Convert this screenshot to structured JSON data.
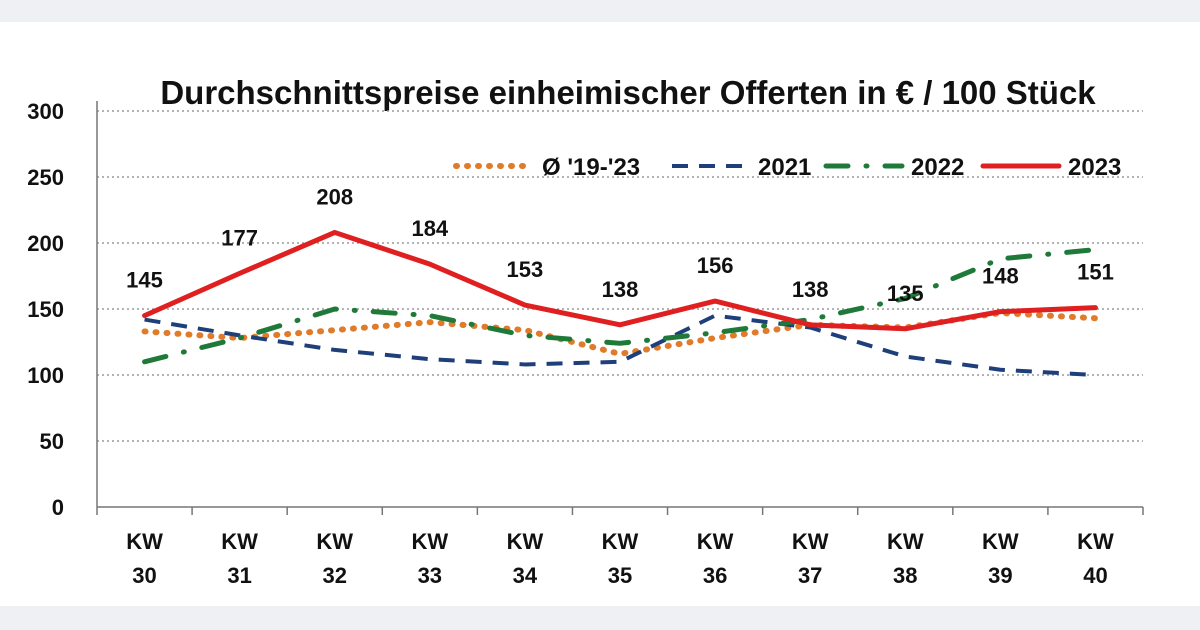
{
  "chart_data": {
    "type": "line",
    "title": "Durchschnittspreise einheimischer Offerten in € / 100 Stück",
    "xlabel": "",
    "ylabel": "",
    "ylim": [
      0,
      300
    ],
    "yticks": [
      0,
      50,
      100,
      150,
      200,
      250,
      300
    ],
    "grid": true,
    "legend_position": "top-right",
    "categories": [
      [
        "KW",
        "30"
      ],
      [
        "KW",
        "31"
      ],
      [
        "KW",
        "32"
      ],
      [
        "KW",
        "33"
      ],
      [
        "KW",
        "34"
      ],
      [
        "KW",
        "35"
      ],
      [
        "KW",
        "36"
      ],
      [
        "KW",
        "37"
      ],
      [
        "KW",
        "38"
      ],
      [
        "KW",
        "39"
      ],
      [
        "KW",
        "40"
      ]
    ],
    "series": [
      {
        "name": "Ø '19-'23",
        "style": "dotted",
        "color": "#e07b2a",
        "values": [
          133,
          128,
          134,
          140,
          134,
          116,
          128,
          138,
          136,
          147,
          143
        ]
      },
      {
        "name": "2021",
        "style": "dashed",
        "color": "#1f3f7a",
        "values": [
          142,
          130,
          119,
          112,
          108,
          110,
          145,
          136,
          114,
          104,
          100
        ]
      },
      {
        "name": "2022",
        "style": "dashdot",
        "color": "#1f7a3a",
        "values": [
          110,
          128,
          150,
          145,
          130,
          124,
          132,
          142,
          158,
          188,
          195
        ]
      },
      {
        "name": "2023",
        "style": "solid",
        "color": "#e02020",
        "values": [
          145,
          177,
          208,
          184,
          153,
          138,
          156,
          138,
          135,
          148,
          151
        ],
        "labels": [
          "145",
          "177",
          "208",
          "184",
          "153",
          "138",
          "156",
          "138",
          "135",
          "148",
          "151"
        ]
      }
    ]
  }
}
